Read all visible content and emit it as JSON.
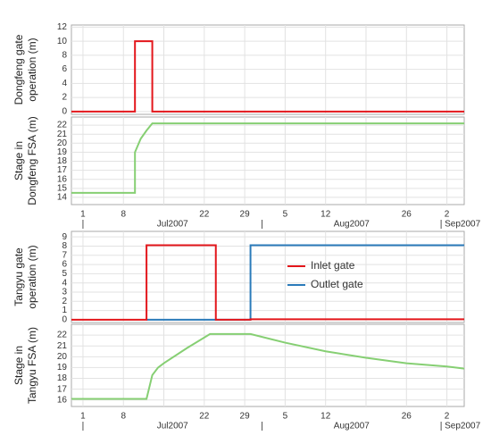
{
  "chart_data": [
    {
      "type": "line",
      "ylabel": [
        "Dongfeng gate",
        "operation (m)"
      ],
      "xlim": [
        "2007-06-29",
        "2007-09-05"
      ],
      "xticks": [
        "2007-07-01",
        "2007-07-08",
        "2007-07-15",
        "2007-07-22",
        "2007-07-29",
        "2007-08-05",
        "2007-08-12",
        "2007-08-19",
        "2007-08-26",
        "2007-09-02"
      ],
      "ylim": [
        -0.4,
        12.3
      ],
      "yticks": [
        0,
        2,
        4,
        6,
        8,
        10,
        12
      ],
      "grid": true,
      "series": [
        {
          "color": "#e3161b",
          "x": [
            "2007-06-29",
            "2007-07-10",
            "2007-07-10",
            "2007-07-13",
            "2007-07-13",
            "2007-09-05"
          ],
          "values": [
            0,
            0,
            10,
            10,
            0,
            0
          ]
        }
      ]
    },
    {
      "type": "line",
      "ylabel": [
        "Stage  in",
        "Dongfeng FSA (m)"
      ],
      "xlim": [
        "2007-06-29",
        "2007-09-05"
      ],
      "xticks": [
        {
          "value": "2007-07-01",
          "label": "1"
        },
        {
          "value": "2007-07-08",
          "label": "8"
        },
        "2007-07-15",
        {
          "value": "2007-07-22",
          "label": "22"
        },
        {
          "value": "2007-07-29",
          "label": "29"
        },
        {
          "value": "2007-08-05",
          "label": "5"
        },
        {
          "value": "2007-08-12",
          "label": "12"
        },
        "2007-08-19",
        {
          "value": "2007-08-26",
          "label": "26"
        },
        {
          "value": "2007-09-02",
          "label": "2"
        }
      ],
      "month_ticks": [
        {
          "value": "2007-07-01",
          "label": "Jul2007"
        },
        {
          "value": "2007-08-01",
          "label": "Aug2007"
        },
        {
          "value": "2007-09-01",
          "label": "Sep2007"
        }
      ],
      "ylim": [
        13.2,
        22.9
      ],
      "yticks": [
        14,
        15,
        16,
        17,
        18,
        19,
        20,
        21,
        22
      ],
      "grid": true,
      "series": [
        {
          "color": "#86cf73",
          "x": [
            "2007-06-29",
            "2007-07-10",
            "2007-07-10",
            "2007-07-11",
            "2007-07-12",
            "2007-07-13",
            "2007-09-05"
          ],
          "values": [
            14.5,
            14.5,
            19,
            20.5,
            21.4,
            22.2,
            22.2
          ]
        }
      ]
    },
    {
      "type": "line",
      "ylabel": [
        "Tangyu gate",
        "operation (m)"
      ],
      "xlim": [
        "2007-06-29",
        "2007-09-05"
      ],
      "xticks": [
        "2007-07-01",
        "2007-07-08",
        "2007-07-15",
        "2007-07-22",
        "2007-07-29",
        "2007-08-05",
        "2007-08-12",
        "2007-08-19",
        "2007-08-26",
        "2007-09-02"
      ],
      "ylim": [
        -0.3,
        9.6
      ],
      "yticks": [
        0,
        1,
        2,
        3,
        4,
        5,
        6,
        7,
        8,
        9
      ],
      "grid": true,
      "legend": "center",
      "series": [
        {
          "name": "Outlet gate",
          "color": "#2b7bba",
          "x": [
            "2007-07-12",
            "2007-07-30",
            "2007-07-30",
            "2007-09-05"
          ],
          "values": [
            0,
            0,
            8.1,
            8.1
          ]
        },
        {
          "name": "Inlet gate",
          "color": "#e3161b",
          "x": [
            "2007-06-29",
            "2007-07-12",
            "2007-07-12",
            "2007-07-24",
            "2007-07-24",
            "2007-07-30",
            "2007-07-30",
            "2007-09-05"
          ],
          "values": [
            0,
            0,
            8.1,
            8.1,
            0,
            0,
            0.05,
            0.05
          ]
        }
      ]
    },
    {
      "type": "line",
      "ylabel": [
        "Stage in",
        "Tangyu FSA (m)"
      ],
      "xlim": [
        "2007-06-29",
        "2007-09-05"
      ],
      "xticks": [
        {
          "value": "2007-07-01",
          "label": "1"
        },
        {
          "value": "2007-07-08",
          "label": "8"
        },
        "2007-07-15",
        {
          "value": "2007-07-22",
          "label": "22"
        },
        {
          "value": "2007-07-29",
          "label": "29"
        },
        {
          "value": "2007-08-05",
          "label": "5"
        },
        {
          "value": "2007-08-12",
          "label": "12"
        },
        "2007-08-19",
        {
          "value": "2007-08-26",
          "label": "26"
        },
        {
          "value": "2007-09-02",
          "label": "2"
        }
      ],
      "month_ticks": [
        {
          "value": "2007-07-01",
          "label": "Jul2007"
        },
        {
          "value": "2007-08-01",
          "label": "Aug2007"
        },
        {
          "value": "2007-09-01",
          "label": "Sep2007"
        }
      ],
      "ylim": [
        15.4,
        23.0
      ],
      "yticks": [
        16,
        17,
        18,
        19,
        20,
        21,
        22
      ],
      "grid": true,
      "series": [
        {
          "color": "#86cf73",
          "x": [
            "2007-06-29",
            "2007-07-12",
            "2007-07-13",
            "2007-07-14",
            "2007-07-15",
            "2007-07-19",
            "2007-07-23",
            "2007-07-30",
            "2007-08-05",
            "2007-08-12",
            "2007-08-19",
            "2007-08-26",
            "2007-09-02",
            "2007-09-05"
          ],
          "values": [
            16.1,
            16.1,
            18.3,
            19.0,
            19.4,
            20.8,
            22.1,
            22.1,
            21.3,
            20.5,
            19.9,
            19.4,
            19.1,
            18.9
          ]
        }
      ]
    }
  ]
}
